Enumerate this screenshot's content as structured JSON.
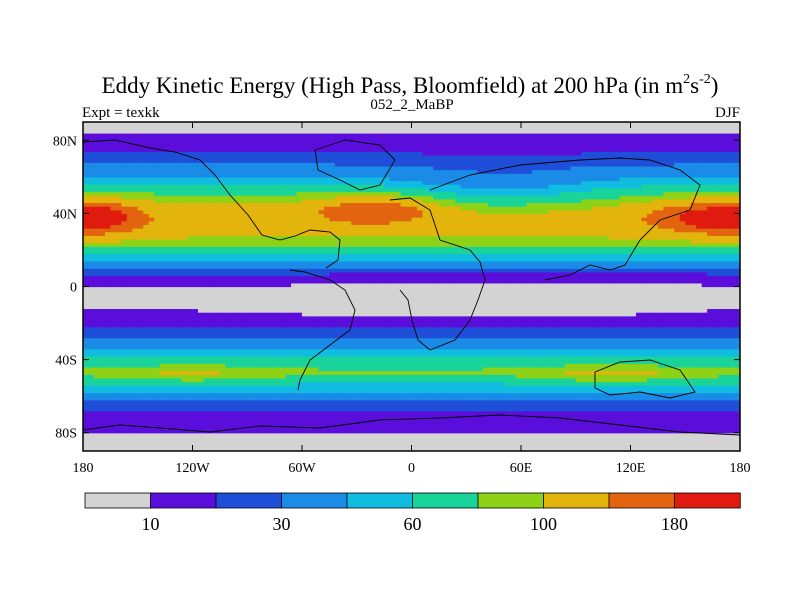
{
  "chart_data": {
    "type": "heatmap",
    "title_main": "Eddy Kinetic Energy (High Pass, Bloomfield) at 200 hPa (in m",
    "title_sup1": "2",
    "title_mid": "s",
    "title_sup2": "-2",
    "title_end": ")",
    "subtitle_left": "Expt = texkk",
    "subtitle_center": "052_2_MaBP",
    "subtitle_right": "DJF",
    "x_ticks": [
      {
        "label": "180",
        "lon": -180
      },
      {
        "label": "120W",
        "lon": -120
      },
      {
        "label": "60W",
        "lon": -60
      },
      {
        "label": "0",
        "lon": 0
      },
      {
        "label": "60E",
        "lon": 60
      },
      {
        "label": "120E",
        "lon": 120
      },
      {
        "label": "180",
        "lon": 180
      }
    ],
    "y_ticks": [
      {
        "label": "80N",
        "lat": 80
      },
      {
        "label": "40N",
        "lat": 40
      },
      {
        "label": "0",
        "lat": 0
      },
      {
        "label": "40S",
        "lat": -40
      },
      {
        "label": "80S",
        "lat": -80
      }
    ],
    "xlim": [
      -180,
      180
    ],
    "ylim": [
      -90,
      90
    ],
    "levels": [
      10,
      20,
      30,
      45,
      60,
      80,
      100,
      140,
      180
    ],
    "colorbar_labels": [
      {
        "label": "10",
        "index": 1
      },
      {
        "label": "30",
        "index": 3
      },
      {
        "label": "60",
        "index": 5
      },
      {
        "label": "100",
        "index": 7
      },
      {
        "label": "180",
        "index": 9
      }
    ],
    "colors": [
      "#d3d3d3",
      "#5b0edb",
      "#1f4ed8",
      "#1a8be6",
      "#10bce0",
      "#18d49a",
      "#8ed218",
      "#e3b40c",
      "#e3640e",
      "#e11a10"
    ],
    "field_profile": {
      "lat": [
        -90,
        -75,
        -62,
        -52,
        -47,
        -38,
        -28,
        -18,
        -10,
        -5,
        0,
        8,
        15,
        22,
        30,
        36,
        42,
        50,
        58,
        68,
        78,
        90
      ],
      "ekek": [
        5,
        12,
        28,
        62,
        85,
        58,
        30,
        16,
        9,
        6,
        10,
        22,
        48,
        82,
        110,
        120,
        112,
        82,
        52,
        28,
        14,
        6
      ]
    }
  }
}
